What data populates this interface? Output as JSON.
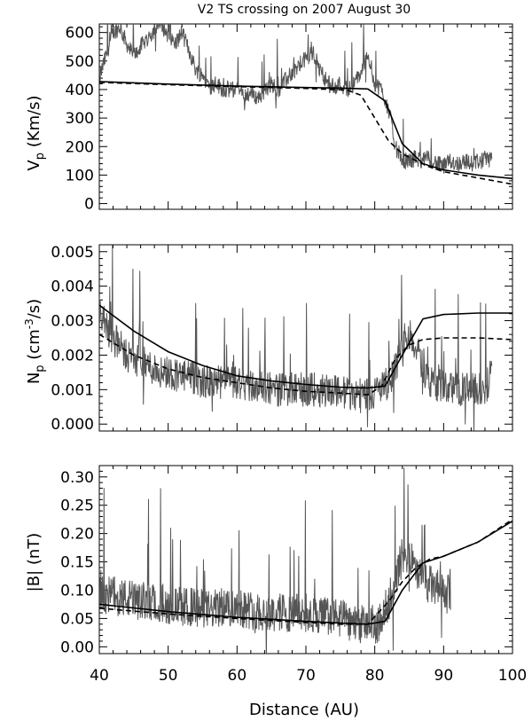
{
  "title": "V2 TS crossing on 2007 August 30",
  "xlabel": "Distance (AU)",
  "colors": {
    "observed": "#555555",
    "model": "#000000",
    "axes": "#000000"
  },
  "chart_data": [
    {
      "type": "line",
      "panel": "velocity",
      "ylabel": {
        "base": "V",
        "sub": "p",
        "unit": " (Km/s)"
      },
      "xlim": [
        40,
        100
      ],
      "ylim": [
        -20,
        630
      ],
      "xticks": [
        40,
        50,
        60,
        70,
        80,
        90,
        100
      ],
      "yticks": [
        0,
        100,
        200,
        300,
        400,
        500,
        600
      ],
      "ytick_labels": [
        "0",
        "100",
        "200",
        "300",
        "400",
        "500",
        "600"
      ],
      "series": [
        {
          "style": "solid",
          "x": [
            40,
            50,
            60,
            70,
            75,
            79,
            81.5,
            84,
            87,
            90,
            95,
            100
          ],
          "y": [
            428,
            419,
            412,
            407,
            405,
            402,
            360,
            210,
            140,
            118,
            100,
            88
          ]
        },
        {
          "style": "dashed",
          "x": [
            40,
            50,
            60,
            70,
            76,
            78,
            80,
            82,
            84,
            86,
            88,
            90,
            95,
            100
          ],
          "y": [
            425,
            417,
            410,
            404,
            398,
            380,
            300,
            220,
            175,
            150,
            128,
            112,
            90,
            68
          ]
        },
        {
          "style": "noisy",
          "x": [
            40,
            41,
            42,
            43,
            44,
            45,
            46,
            47,
            48,
            49,
            50,
            51,
            52,
            53,
            54,
            55,
            56,
            57,
            58,
            59,
            60,
            61,
            62,
            63,
            64,
            65,
            66,
            67,
            68,
            69,
            70,
            71,
            72,
            73,
            74,
            75,
            76,
            77,
            78,
            79,
            80,
            81,
            82,
            83,
            84,
            85,
            86,
            87,
            88,
            89,
            90,
            91,
            92,
            93,
            94,
            95,
            96,
            97
          ],
          "y": [
            440,
            520,
            600,
            620,
            560,
            520,
            550,
            580,
            610,
            630,
            590,
            560,
            600,
            540,
            470,
            450,
            410,
            420,
            400,
            400,
            400,
            380,
            390,
            370,
            390,
            420,
            400,
            430,
            460,
            480,
            510,
            530,
            470,
            430,
            410,
            420,
            400,
            420,
            460,
            530,
            420,
            400,
            330,
            200,
            150,
            150,
            160,
            150,
            160,
            140,
            130,
            150,
            140,
            150,
            140,
            150,
            150,
            150
          ],
          "noise": 30
        }
      ]
    },
    {
      "type": "line",
      "panel": "density",
      "ylabel": {
        "base": "N",
        "sub": "p",
        "unit": " (cm",
        "sup": "-3",
        "unit2": "/s)"
      },
      "xlim": [
        40,
        100
      ],
      "ylim": [
        -0.0002,
        0.0052
      ],
      "xticks": [
        40,
        50,
        60,
        70,
        80,
        90,
        100
      ],
      "yticks": [
        0.0,
        0.001,
        0.002,
        0.003,
        0.004,
        0.005
      ],
      "ytick_labels": [
        "0.000",
        "0.001",
        "0.002",
        "0.003",
        "0.004",
        "0.005"
      ],
      "series": [
        {
          "style": "solid",
          "x": [
            40,
            45,
            50,
            55,
            60,
            65,
            70,
            75,
            79,
            81.5,
            84,
            87,
            90,
            95,
            100
          ],
          "y": [
            0.00345,
            0.0027,
            0.0021,
            0.0017,
            0.0014,
            0.00125,
            0.00115,
            0.00107,
            0.00105,
            0.0011,
            0.002,
            0.00305,
            0.00318,
            0.00322,
            0.00322
          ],
          "noise": 0
        },
        {
          "style": "dashed",
          "x": [
            40,
            45,
            50,
            55,
            60,
            65,
            70,
            75,
            79,
            81,
            83,
            85,
            87,
            90,
            95,
            100
          ],
          "y": [
            0.0026,
            0.002,
            0.0016,
            0.00135,
            0.0012,
            0.00105,
            0.00095,
            0.0009,
            0.00085,
            0.0011,
            0.0019,
            0.0023,
            0.00245,
            0.0025,
            0.0025,
            0.00245
          ],
          "noise": 0
        },
        {
          "style": "noisy",
          "x": [
            40,
            42,
            44,
            46,
            48,
            50,
            52,
            54,
            56,
            58,
            60,
            62,
            64,
            66,
            68,
            70,
            72,
            74,
            76,
            78,
            80,
            82,
            84,
            85,
            86,
            88,
            90,
            92,
            94,
            96,
            97
          ],
          "y": [
            0.0032,
            0.0025,
            0.002,
            0.0018,
            0.0016,
            0.0015,
            0.0014,
            0.0013,
            0.0012,
            0.0012,
            0.0012,
            0.0011,
            0.0011,
            0.001,
            0.001,
            0.001,
            0.001,
            0.001,
            0.0009,
            0.0009,
            0.0009,
            0.0012,
            0.0021,
            0.0026,
            0.0022,
            0.0012,
            0.0011,
            0.001,
            0.001,
            0.001,
            0.0015
          ],
          "noise": 0.0005
        }
      ]
    },
    {
      "type": "line",
      "panel": "magnetic",
      "ylabel": {
        "text": "|B| (nT)"
      },
      "xlim": [
        40,
        100
      ],
      "ylim": [
        -0.012,
        0.32
      ],
      "xticks": [
        40,
        50,
        60,
        70,
        80,
        90,
        100
      ],
      "xtick_labels": [
        "40",
        "50",
        "60",
        "70",
        "80",
        "90",
        "100"
      ],
      "yticks": [
        0.0,
        0.05,
        0.1,
        0.15,
        0.2,
        0.25,
        0.3
      ],
      "ytick_labels": [
        "0.00",
        "0.05",
        "0.10",
        "0.15",
        "0.20",
        "0.25",
        "0.30"
      ],
      "series": [
        {
          "style": "solid",
          "x": [
            40,
            50,
            60,
            70,
            75,
            79,
            81.5,
            84,
            87,
            90,
            95,
            100
          ],
          "y": [
            0.075,
            0.062,
            0.052,
            0.045,
            0.042,
            0.04,
            0.045,
            0.1,
            0.148,
            0.16,
            0.185,
            0.222
          ],
          "noise": 0
        },
        {
          "style": "dashed",
          "x": [
            40,
            50,
            60,
            70,
            75,
            79,
            82,
            84,
            86,
            88,
            90,
            95,
            100
          ],
          "y": [
            0.068,
            0.058,
            0.05,
            0.043,
            0.04,
            0.04,
            0.08,
            0.115,
            0.14,
            0.155,
            0.16,
            0.185,
            0.225
          ],
          "noise": 0
        },
        {
          "style": "noisy",
          "x": [
            40,
            42,
            44,
            46,
            48,
            50,
            52,
            54,
            56,
            58,
            60,
            62,
            64,
            66,
            68,
            70,
            72,
            74,
            76,
            78,
            80,
            81,
            82,
            83,
            84,
            85,
            86,
            88,
            90,
            91
          ],
          "y": [
            0.09,
            0.09,
            0.085,
            0.08,
            0.08,
            0.075,
            0.07,
            0.07,
            0.065,
            0.07,
            0.07,
            0.065,
            0.06,
            0.06,
            0.06,
            0.06,
            0.055,
            0.055,
            0.045,
            0.04,
            0.035,
            0.045,
            0.08,
            0.12,
            0.16,
            0.15,
            0.13,
            0.11,
            0.095,
            0.09
          ],
          "noise": 0.035
        }
      ]
    }
  ]
}
